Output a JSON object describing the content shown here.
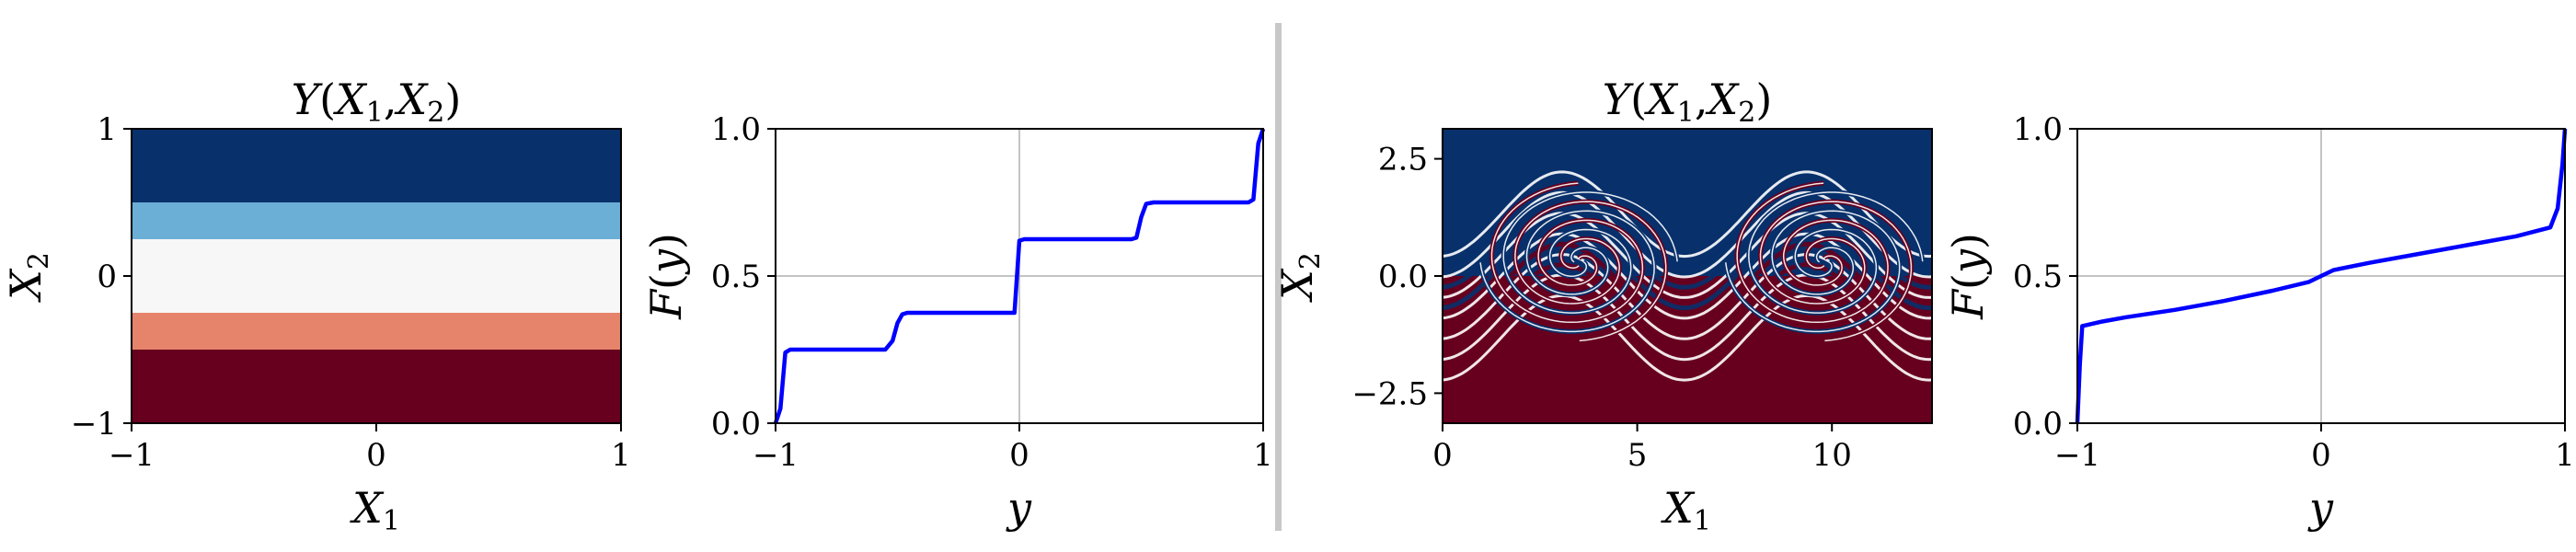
{
  "figure": {
    "divider_color": "#c8c8c8",
    "axis_color": "#000000",
    "grid_color": "#b0b0b0",
    "curve_color": "#0000ff"
  },
  "chart_data": [
    {
      "type": "heatmap",
      "panel": "a",
      "title": "Y(X₁,X₂)",
      "xlabel": "X₁",
      "ylabel": "X₂",
      "xlim": [
        -1,
        1
      ],
      "ylim": [
        -1,
        1
      ],
      "xticks": [
        "−1",
        "0",
        "1"
      ],
      "yticks": [
        "−1",
        "0",
        "1"
      ],
      "xtick_values": [
        -1,
        0,
        1
      ],
      "ytick_values": [
        -1,
        0,
        1
      ],
      "colormap": "RdBu",
      "bands": [
        {
          "y_from": 0.5,
          "y_to": 1.0,
          "color": "#08306b"
        },
        {
          "y_from": 0.25,
          "y_to": 0.5,
          "color": "#6baed6"
        },
        {
          "y_from": -0.25,
          "y_to": 0.25,
          "color": "#f7f7f7"
        },
        {
          "y_from": -0.5,
          "y_to": -0.25,
          "color": "#e6846b"
        },
        {
          "y_from": -1.0,
          "y_to": -0.5,
          "color": "#67001f"
        }
      ]
    },
    {
      "type": "line",
      "panel": "b",
      "title": "",
      "xlabel": "y",
      "ylabel": "F(y)",
      "xlim": [
        -1,
        1
      ],
      "ylim": [
        0,
        1
      ],
      "xticks": [
        "−1",
        "0",
        "1"
      ],
      "yticks": [
        "0.0",
        "0.5",
        "1.0"
      ],
      "xtick_values": [
        -1,
        0,
        1
      ],
      "ytick_values": [
        0,
        0.5,
        1
      ],
      "grid": true,
      "series": [
        {
          "x": [
            -1.0,
            -0.98,
            -0.96,
            -0.94,
            -0.9,
            -0.55,
            -0.52,
            -0.5,
            -0.48,
            -0.46,
            -0.02,
            0.0,
            0.02,
            0.46,
            0.48,
            0.5,
            0.52,
            0.55,
            0.94,
            0.96,
            0.98,
            1.0
          ],
          "y": [
            0.0,
            0.05,
            0.24,
            0.25,
            0.25,
            0.25,
            0.28,
            0.34,
            0.37,
            0.375,
            0.375,
            0.62,
            0.625,
            0.625,
            0.63,
            0.7,
            0.745,
            0.75,
            0.75,
            0.76,
            0.95,
            1.0
          ]
        }
      ]
    },
    {
      "type": "heatmap",
      "panel": "c",
      "title": "Y(X₁,X₂)",
      "xlabel": "X₁",
      "ylabel": "X₂",
      "xlim": [
        0,
        12.57
      ],
      "ylim": [
        -3.14,
        3.14
      ],
      "xticks": [
        "0",
        "5",
        "10"
      ],
      "yticks": [
        "−2.5",
        "0.0",
        "2.5"
      ],
      "xtick_values": [
        0,
        5,
        10
      ],
      "ytick_values": [
        -2.5,
        0,
        2.5
      ],
      "colormap": "RdBu",
      "top_color": "#08306b",
      "bottom_color": "#67001f"
    },
    {
      "type": "line",
      "panel": "d",
      "title": "",
      "xlabel": "y",
      "ylabel": "F(y)",
      "xlim": [
        -1,
        1
      ],
      "ylim": [
        0,
        1
      ],
      "xticks": [
        "−1",
        "0",
        "1"
      ],
      "yticks": [
        "0.0",
        "0.5",
        "1.0"
      ],
      "xtick_values": [
        -1,
        0,
        1
      ],
      "ytick_values": [
        0,
        0.5,
        1
      ],
      "grid": true,
      "series": [
        {
          "x": [
            -1.0,
            -0.99,
            -0.98,
            -0.9,
            -0.8,
            -0.6,
            -0.4,
            -0.2,
            -0.05,
            0.0,
            0.05,
            0.2,
            0.4,
            0.6,
            0.8,
            0.94,
            0.97,
            0.99,
            1.0
          ],
          "y": [
            0.0,
            0.2,
            0.33,
            0.345,
            0.36,
            0.385,
            0.415,
            0.45,
            0.48,
            0.5,
            0.52,
            0.545,
            0.575,
            0.605,
            0.635,
            0.665,
            0.73,
            0.88,
            1.0
          ]
        }
      ]
    }
  ]
}
